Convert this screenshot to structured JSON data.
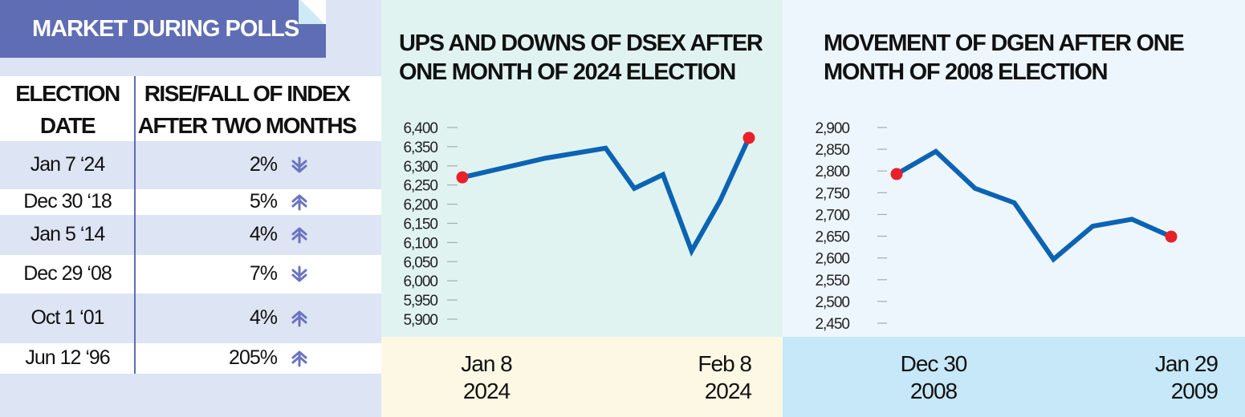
{
  "table": {
    "title": "MARKET DURING POLLS",
    "headers": {
      "col1_line1": "ELECTION",
      "col1_line2": "DATE",
      "col2_line1": "RISE/FALL OF INDEX",
      "col2_line2": "AFTER TWO MONTHS"
    },
    "rows": [
      {
        "date": "Jan 7 ‘24",
        "change": "2%",
        "direction": "down"
      },
      {
        "date": "Dec 30 ‘18",
        "change": "5%",
        "direction": "up"
      },
      {
        "date": "Jan 5 ‘14",
        "change": "4%",
        "direction": "up"
      },
      {
        "date": "Dec 29 ‘08",
        "change": "7%",
        "direction": "down"
      },
      {
        "date": "Oct 1 ‘01",
        "change": "4%",
        "direction": "up"
      },
      {
        "date": "Jun 12 ‘96",
        "change": "205%",
        "direction": "up"
      }
    ],
    "arrow_color": "#6b74c0"
  },
  "chart_data": [
    {
      "type": "line",
      "title_line1": "UPS AND DOWNS OF DSEX AFTER",
      "title_line2": "ONE MONTH OF 2024 ELECTION",
      "x_unit": "days after Jan 8 2024",
      "x": [
        0,
        9,
        15.5,
        18.6,
        21.7,
        24.8,
        27.9,
        31
      ],
      "y": [
        6270,
        6320,
        6346,
        6241,
        6277,
        6078,
        6210,
        6373
      ],
      "yticks": [
        6400,
        6350,
        6300,
        6250,
        6200,
        6150,
        6100,
        6050,
        6000,
        5950,
        5900
      ],
      "ytick_labels": [
        "6,400",
        "6,350",
        "6,300",
        "6,250",
        "6,200",
        "6,150",
        "6,100",
        "6,050",
        "6,000",
        "5,950",
        "5,900"
      ],
      "ylim": [
        5900,
        6400
      ],
      "xlim": [
        0,
        31
      ],
      "x_start": {
        "line1": "Jan 8",
        "line2": "2024"
      },
      "x_end": {
        "line1": "Feb 8",
        "line2": "2024"
      },
      "line_color": "#0b63b3",
      "marker_color": "#e8202a"
    },
    {
      "type": "line",
      "title_line1": "MOVEMENT OF DGEN AFTER ONE",
      "title_line2": "MONTH OF 2008 ELECTION",
      "x_unit": "point index",
      "x": [
        0,
        1,
        2,
        3,
        4,
        5,
        6,
        7
      ],
      "y": [
        2793,
        2845,
        2760,
        2727,
        2597,
        2673,
        2689,
        2649
      ],
      "yticks": [
        2900,
        2850,
        2800,
        2750,
        2700,
        2650,
        2600,
        2550,
        2500,
        2450
      ],
      "ytick_labels": [
        "2,900",
        "2,850",
        "2,800",
        "2,750",
        "2,700",
        "2,650",
        "2,600",
        "2,550",
        "2,500",
        "2,450"
      ],
      "ylim": [
        2450,
        2900
      ],
      "xlim": [
        0,
        7
      ],
      "x_start": {
        "line1": "Dec 30",
        "line2": "2008"
      },
      "x_end": {
        "line1": "Jan 29",
        "line2": "2009"
      },
      "line_color": "#0b63b3",
      "marker_color": "#e8202a"
    }
  ]
}
